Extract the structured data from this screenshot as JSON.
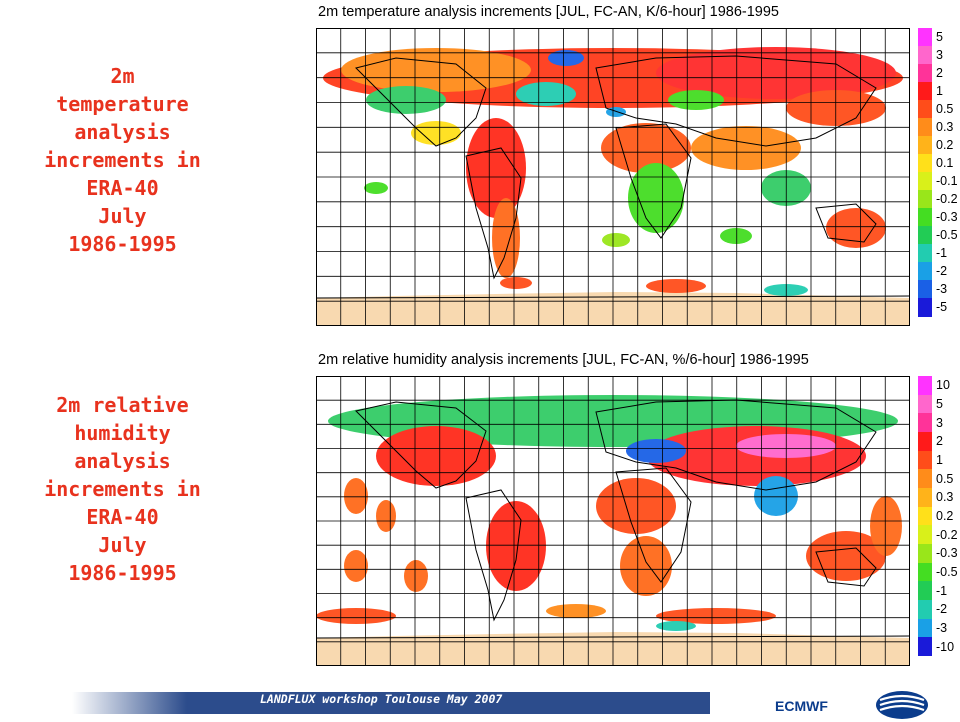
{
  "captions": {
    "top": [
      "2m",
      "temperature",
      "analysis",
      "increments in",
      "ERA-40",
      "July",
      "1986-1995"
    ],
    "bottom": [
      "2m relative",
      "humidity",
      "analysis",
      "increments in",
      "ERA-40",
      "July",
      "1986-1995"
    ]
  },
  "panels": {
    "top": {
      "title": "2m temperature analysis increments [JUL, FC-AN, K/6-hour] 1986-1995",
      "legend": [
        "5",
        "3",
        "2",
        "1",
        "0.5",
        "0.3",
        "0.2",
        "0.1",
        "-0.1",
        "-0.2",
        "-0.3",
        "-0.5",
        "-1",
        "-2",
        "-3",
        "-5"
      ],
      "colors": [
        "#ff33ff",
        "#ff66cc",
        "#ff3399",
        "#ff1a1a",
        "#ff4d1a",
        "#ff8c1a",
        "#ffb31a",
        "#ffe01a",
        "#d9f01a",
        "#99e61a",
        "#44dd22",
        "#22cc55",
        "#22ccb0",
        "#1aa0e6",
        "#1a60e6",
        "#1a1ad9"
      ]
    },
    "bottom": {
      "title": "2m relative humidity analysis increments [JUL, FC-AN, %/6-hour] 1986-1995",
      "legend": [
        "10",
        "5",
        "3",
        "2",
        "1",
        "0.5",
        "0.3",
        "0.2",
        "-0.2",
        "-0.3",
        "-0.5",
        "-1",
        "-2",
        "-3",
        "-10"
      ],
      "colors": [
        "#ff33ff",
        "#ff66cc",
        "#ff3399",
        "#ff1a1a",
        "#ff4d1a",
        "#ff8c1a",
        "#ffb31a",
        "#ffe01a",
        "#d9f01a",
        "#99e61a",
        "#44dd22",
        "#22cc55",
        "#22ccb0",
        "#1aa0e6",
        "#1a1ad9"
      ]
    }
  },
  "footer": {
    "event": "LANDFLUX workshop Toulouse May 2007",
    "brand": "ECMWF"
  }
}
